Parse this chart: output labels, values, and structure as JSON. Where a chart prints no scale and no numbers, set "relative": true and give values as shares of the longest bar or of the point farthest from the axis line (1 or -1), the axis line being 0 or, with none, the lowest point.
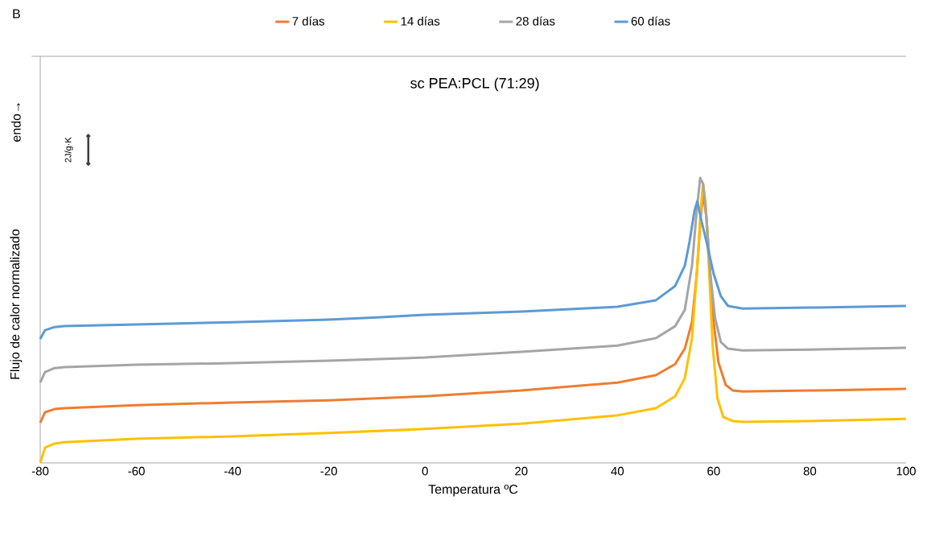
{
  "chart_data": {
    "type": "line",
    "relative": true,
    "legend": "top",
    "title": "sc PEA:PCL (71:29)",
    "xlabel": "Temperatura ºC",
    "ylabel": "Flujo de calor normalizado",
    "annotations": [
      "B",
      "endo→",
      "2J/g·K"
    ],
    "xlim": [
      -80,
      100
    ],
    "xticks": [
      -80,
      -60,
      -40,
      -20,
      0,
      20,
      40,
      60,
      80,
      100
    ],
    "series": [
      {
        "name": "7 días",
        "color": "#ed7d31",
        "x": [
          -80,
          -79,
          -77,
          -75,
          -60,
          -40,
          -20,
          0,
          20,
          40,
          48,
          52,
          54,
          55.5,
          56.5,
          57.3,
          57.8,
          58.5,
          59.3,
          60,
          61,
          62.5,
          64,
          66,
          80,
          100
        ],
        "values": [
          0.141,
          0.178,
          0.189,
          0.192,
          0.203,
          0.212,
          0.22,
          0.234,
          0.254,
          0.282,
          0.308,
          0.347,
          0.401,
          0.494,
          0.664,
          0.862,
          0.946,
          0.862,
          0.664,
          0.494,
          0.353,
          0.274,
          0.254,
          0.251,
          0.254,
          0.26
        ]
      },
      {
        "name": "14 días",
        "color": "#ffc000",
        "x": [
          -80,
          -79,
          -77,
          -75,
          -60,
          -40,
          -20,
          0,
          20,
          40,
          48,
          52,
          54,
          55.5,
          56.5,
          57.3,
          57.8,
          58.3,
          59,
          59.8,
          60.8,
          62,
          64,
          66,
          80,
          100
        ],
        "values": [
          0,
          0.054,
          0.068,
          0.073,
          0.085,
          0.093,
          0.105,
          0.119,
          0.138,
          0.167,
          0.192,
          0.234,
          0.297,
          0.438,
          0.664,
          0.89,
          0.98,
          0.918,
          0.692,
          0.41,
          0.226,
          0.161,
          0.147,
          0.144,
          0.147,
          0.155
        ]
      },
      {
        "name": "28 días",
        "color": "#a5a5a5",
        "x": [
          -80,
          -79,
          -77,
          -75,
          -60,
          -40,
          -20,
          0,
          20,
          40,
          48,
          52,
          54,
          55.5,
          56.5,
          57.2,
          57.8,
          58.5,
          59.3,
          60.3,
          61.5,
          63,
          66,
          80,
          100
        ],
        "values": [
          0.282,
          0.319,
          0.333,
          0.336,
          0.345,
          0.35,
          0.359,
          0.37,
          0.39,
          0.412,
          0.438,
          0.48,
          0.537,
          0.692,
          0.89,
          1.0,
          0.98,
          0.862,
          0.664,
          0.508,
          0.424,
          0.401,
          0.395,
          0.398,
          0.404
        ]
      },
      {
        "name": "60 días",
        "color": "#5b9bd5",
        "x": [
          -80,
          -79,
          -77,
          -75,
          -60,
          -40,
          -20,
          -10,
          0,
          20,
          40,
          48,
          52,
          54,
          55,
          56,
          56.6,
          57.5,
          58.5,
          60,
          61.5,
          63,
          66,
          80,
          100
        ],
        "values": [
          0.435,
          0.466,
          0.477,
          0.48,
          0.486,
          0.494,
          0.503,
          0.511,
          0.52,
          0.531,
          0.548,
          0.571,
          0.621,
          0.692,
          0.777,
          0.884,
          0.918,
          0.847,
          0.777,
          0.664,
          0.585,
          0.551,
          0.542,
          0.545,
          0.551
        ]
      }
    ]
  }
}
